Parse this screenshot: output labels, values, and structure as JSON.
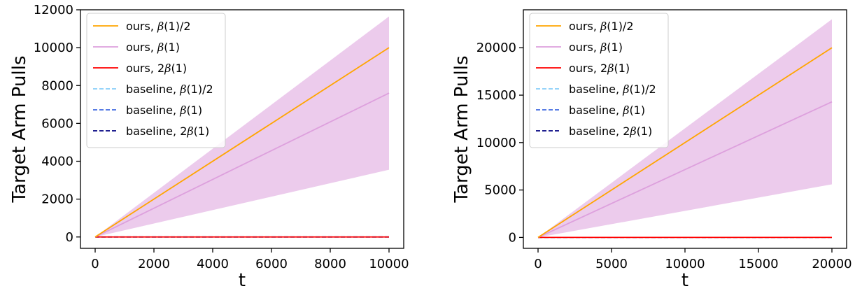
{
  "colors": {
    "ours_half": "#ffa500",
    "ours_one": "#dda0dd",
    "ours_two": "#ff0000",
    "baseline_half": "#87cefa",
    "baseline_one": "#4169e1",
    "baseline_two": "#000080",
    "band": "#dda0dd"
  },
  "chart_data": [
    {
      "type": "line",
      "xlabel": "t",
      "ylabel": "Target Arm Pulls",
      "xlim": [
        -500,
        10500
      ],
      "ylim": [
        -600,
        12000
      ],
      "xticks": [
        0,
        2000,
        4000,
        6000,
        8000,
        10000
      ],
      "yticks": [
        0,
        2000,
        4000,
        6000,
        8000,
        10000,
        12000
      ],
      "xtick_labels": [
        "0",
        "2000",
        "4000",
        "6000",
        "8000",
        "10000"
      ],
      "ytick_labels": [
        "0",
        "2000",
        "4000",
        "6000",
        "8000",
        "10000",
        "12000"
      ],
      "legend_position": "upper-left",
      "band": {
        "series": "ours, β(1)",
        "x": [
          0,
          10000
        ],
        "lower": [
          0,
          3550
        ],
        "upper": [
          0,
          11650
        ]
      },
      "series": [
        {
          "name": "ours, β(1)/2",
          "style": "solid",
          "color": "#ffa500",
          "x": [
            0,
            10000
          ],
          "y": [
            0,
            10000
          ]
        },
        {
          "name": "ours, β(1)",
          "style": "solid",
          "color": "#dda0dd",
          "x": [
            0,
            10000
          ],
          "y": [
            0,
            7600
          ]
        },
        {
          "name": "ours, 2β(1)",
          "style": "solid",
          "color": "#ff0000",
          "x": [
            0,
            10000
          ],
          "y": [
            0,
            0
          ]
        },
        {
          "name": "baseline, β(1)/2",
          "style": "dashed",
          "color": "#87cefa",
          "x": [
            0,
            10000
          ],
          "y": [
            0,
            0
          ]
        },
        {
          "name": "baseline, β(1)",
          "style": "dashed",
          "color": "#4169e1",
          "x": [
            0,
            10000
          ],
          "y": [
            0,
            0
          ]
        },
        {
          "name": "baseline, 2β(1)",
          "style": "dashed",
          "color": "#000080",
          "x": [
            0,
            10000
          ],
          "y": [
            0,
            0
          ]
        }
      ]
    },
    {
      "type": "line",
      "xlabel": "t",
      "ylabel": "Target Arm Pulls",
      "xlim": [
        -1000,
        21000
      ],
      "ylim": [
        -1150,
        24000
      ],
      "xticks": [
        0,
        5000,
        10000,
        15000,
        20000
      ],
      "yticks": [
        0,
        5000,
        10000,
        15000,
        20000
      ],
      "xtick_labels": [
        "0",
        "5000",
        "10000",
        "15000",
        "20000"
      ],
      "ytick_labels": [
        "0",
        "5000",
        "10000",
        "15000",
        "20000"
      ],
      "legend_position": "upper-left",
      "band": {
        "series": "ours, β(1)",
        "x": [
          0,
          20000
        ],
        "lower": [
          0,
          5600
        ],
        "upper": [
          0,
          23000
        ]
      },
      "series": [
        {
          "name": "ours, β(1)/2",
          "style": "solid",
          "color": "#ffa500",
          "x": [
            0,
            20000
          ],
          "y": [
            0,
            20000
          ]
        },
        {
          "name": "ours, β(1)",
          "style": "solid",
          "color": "#dda0dd",
          "x": [
            0,
            20000
          ],
          "y": [
            0,
            14300
          ]
        },
        {
          "name": "ours, 2β(1)",
          "style": "solid",
          "color": "#ff0000",
          "x": [
            0,
            20000
          ],
          "y": [
            0,
            0
          ]
        },
        {
          "name": "baseline, β(1)/2",
          "style": "dashed",
          "color": "#87cefa",
          "x": [
            0,
            20000
          ],
          "y": [
            0,
            0
          ]
        },
        {
          "name": "baseline, β(1)",
          "style": "dashed",
          "color": "#4169e1",
          "x": [
            0,
            20000
          ],
          "y": [
            0,
            0
          ]
        },
        {
          "name": "baseline, 2β(1)",
          "style": "dashed",
          "color": "#000080",
          "x": [
            0,
            20000
          ],
          "y": [
            0,
            0
          ]
        }
      ]
    }
  ]
}
